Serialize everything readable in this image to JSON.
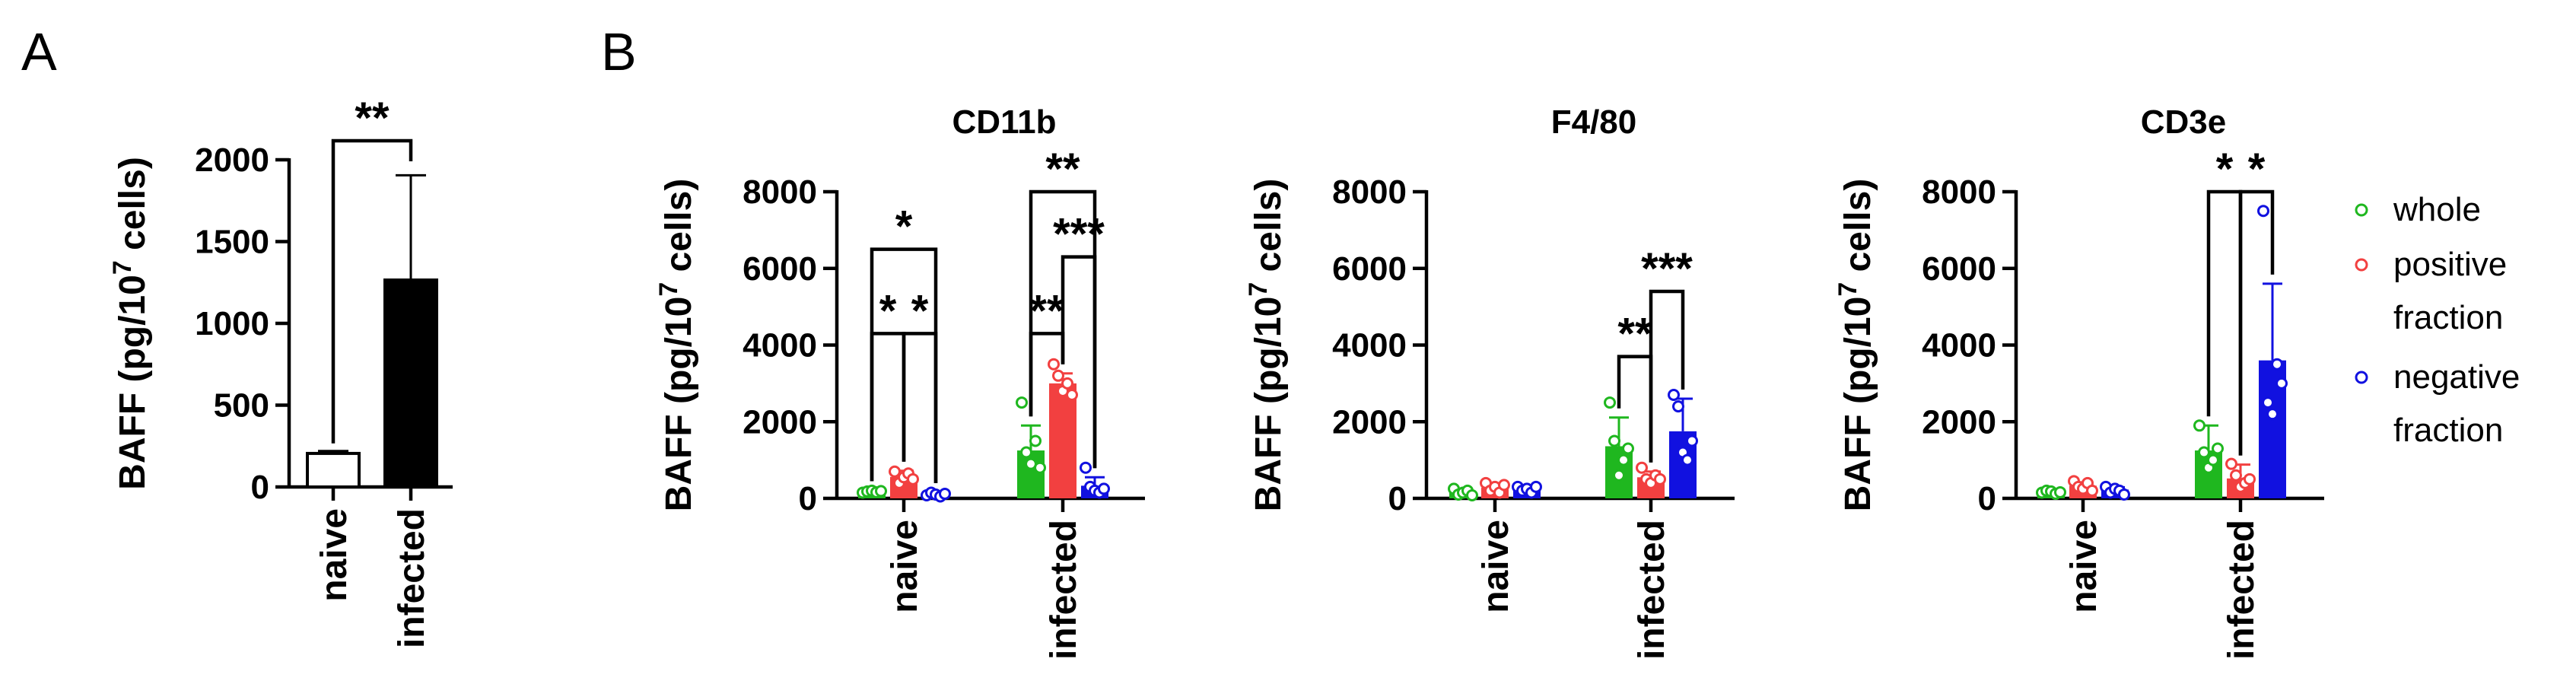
{
  "chart_data": [
    {
      "panel": "A",
      "type": "bar",
      "title": "",
      "ylabel": "BAFF (pg/10^7 cells)",
      "ylabel_parts": {
        "pre": "BAFF (pg/10",
        "exp": "7",
        "post": " cells)"
      },
      "ylim": [
        0,
        2000
      ],
      "yticks": [
        "0",
        "500",
        "1000",
        "1500",
        "2000"
      ],
      "categories": [
        "naive",
        "infected"
      ],
      "values": [
        205,
        1265
      ],
      "errors": [
        15,
        640
      ],
      "fills": [
        "#ffffff",
        "#000000"
      ],
      "significance": [
        {
          "from": 0,
          "to": 1,
          "label": "**"
        }
      ]
    },
    {
      "panel": "B",
      "type": "bar",
      "title": "CD11b",
      "ylabel": "BAFF (pg/10^7 cells)",
      "ylabel_parts": {
        "pre": "BAFF (pg/10",
        "exp": "7",
        "post": " cells)"
      },
      "ylim": [
        0,
        8000
      ],
      "yticks": [
        "0",
        "2000",
        "4000",
        "6000",
        "8000"
      ],
      "categories": [
        "naive",
        "infected"
      ],
      "series": [
        {
          "name": "whole",
          "color": "#1fb71f",
          "values": [
            180,
            1250
          ],
          "errors": [
            30,
            650
          ],
          "points": [
            [
              150,
              180,
              200,
              160,
              190
            ],
            [
              2500,
              1200,
              900,
              1500,
              800
            ]
          ]
        },
        {
          "name": "positive fraction",
          "color": "#f24040",
          "values": [
            560,
            3000
          ],
          "errors": [
            160,
            260
          ],
          "points": [
            [
              700,
              400,
              550,
              650,
              500
            ],
            [
              3500,
              3200,
              2800,
              3000,
              2700
            ]
          ]
        },
        {
          "name": "negative fraction",
          "color": "#1111e0",
          "values": [
            100,
            330
          ],
          "errors": [
            40,
            220
          ],
          "points": [
            [
              80,
              150,
              100,
              50,
              120
            ],
            [
              800,
              300,
              200,
              150,
              250
            ]
          ]
        }
      ],
      "significance": [
        {
          "group": 0,
          "from": 0,
          "to": 2,
          "label": "*",
          "level": 6500
        },
        {
          "group": 0,
          "from": 0,
          "to": 1,
          "label": "*",
          "level": 4300
        },
        {
          "group": 0,
          "from": 1,
          "to": 2,
          "label": "*",
          "level": 4300
        },
        {
          "group": 1,
          "from": 0,
          "to": 2,
          "label": "**",
          "level": 8000
        },
        {
          "group": 1,
          "from": 1,
          "to": 2,
          "label": "***",
          "level": 6300
        },
        {
          "group": 1,
          "from": 0,
          "to": 1,
          "label": "**",
          "level": 4300
        }
      ]
    },
    {
      "panel": "B",
      "type": "bar",
      "title": "F4/80",
      "ylabel": "BAFF (pg/10^7 cells)",
      "ylabel_parts": {
        "pre": "BAFF (pg/10",
        "exp": "7",
        "post": " cells)"
      },
      "ylim": [
        0,
        8000
      ],
      "yticks": [
        "0",
        "2000",
        "4000",
        "6000",
        "8000"
      ],
      "categories": [
        "naive",
        "infected"
      ],
      "series": [
        {
          "name": "whole",
          "color": "#1fb71f",
          "values": [
            150,
            1360
          ],
          "errors": [
            40,
            750
          ],
          "points": [
            [
              250,
              100,
              150,
              200,
              80
            ],
            [
              2500,
              1500,
              600,
              1000,
              1300
            ]
          ]
        },
        {
          "name": "positive fraction",
          "color": "#f24040",
          "values": [
            280,
            550
          ],
          "errors": [
            90,
            150
          ],
          "points": [
            [
              400,
              200,
              300,
              150,
              350
            ],
            [
              800,
              500,
              400,
              600,
              500
            ]
          ]
        },
        {
          "name": "negative fraction",
          "color": "#1111e0",
          "values": [
            240,
            1750
          ],
          "errors": [
            60,
            850
          ],
          "points": [
            [
              300,
              200,
              250,
              150,
              300
            ],
            [
              2700,
              2400,
              1200,
              1000,
              1500
            ]
          ]
        }
      ],
      "significance": [
        {
          "group": 1,
          "from": 0,
          "to": 1,
          "label": "**",
          "level": 3700
        },
        {
          "group": 1,
          "from": 1,
          "to": 2,
          "label": "***",
          "level": 5400
        }
      ]
    },
    {
      "panel": "B",
      "type": "bar",
      "title": "CD3e",
      "ylabel": "BAFF (pg/10^7 cells)",
      "ylabel_parts": {
        "pre": "BAFF (pg/10",
        "exp": "7",
        "post": " cells)"
      },
      "ylim": [
        0,
        8000
      ],
      "yticks": [
        "0",
        "2000",
        "4000",
        "6000",
        "8000"
      ],
      "categories": [
        "naive",
        "infected"
      ],
      "series": [
        {
          "name": "whole",
          "color": "#1fb71f",
          "values": [
            170,
            1250
          ],
          "errors": [
            40,
            650
          ],
          "points": [
            [
              150,
              200,
              180,
              120,
              160
            ],
            [
              1900,
              1200,
              800,
              1000,
              1300
            ]
          ]
        },
        {
          "name": "positive fraction",
          "color": "#f24040",
          "values": [
            330,
            520
          ],
          "errors": [
            90,
            360
          ],
          "points": [
            [
              450,
              300,
              250,
              400,
              200
            ],
            [
              900,
              600,
              300,
              400,
              500
            ]
          ]
        },
        {
          "name": "negative fraction",
          "color": "#1111e0",
          "values": [
            230,
            3600
          ],
          "errors": [
            60,
            2000
          ],
          "points": [
            [
              300,
              150,
              250,
              200,
              100
            ],
            [
              7500,
              2500,
              2200,
              3500,
              3000
            ]
          ]
        }
      ],
      "significance": [
        {
          "group": 1,
          "from": 0,
          "to": 1,
          "label": "*",
          "level": 8000
        },
        {
          "group": 1,
          "from": 1,
          "to": 2,
          "label": "*",
          "level": 8000
        }
      ]
    }
  ],
  "panel_labels": {
    "a": "A",
    "b": "B"
  },
  "legend": [
    {
      "lines": [
        "whole"
      ],
      "color": "#1fb71f"
    },
    {
      "lines": [
        "positive",
        "fraction"
      ],
      "color": "#f24040"
    },
    {
      "lines": [
        "negative",
        "fraction"
      ],
      "color": "#1111e0"
    }
  ]
}
